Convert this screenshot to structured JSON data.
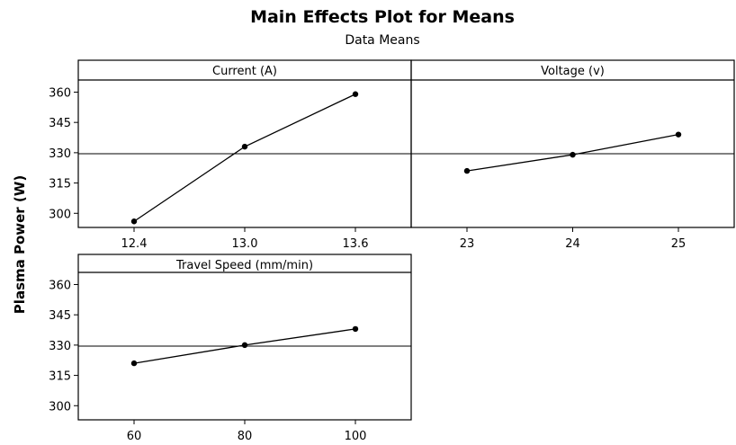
{
  "chart_data": {
    "type": "line",
    "title": "Main Effects Plot for Means",
    "subtitle": "Data Means",
    "ylabel": "Plasma Power (W)",
    "ylim": [
      293,
      366
    ],
    "yticks": [
      300,
      315,
      330,
      345,
      360
    ],
    "reference_mean": 329.5,
    "panels": [
      {
        "name": "Current (A)",
        "x": [
          "12.4",
          "13.0",
          "13.6"
        ],
        "values": [
          296,
          333,
          359
        ]
      },
      {
        "name": "Voltage (v)",
        "x": [
          "23",
          "24",
          "25"
        ],
        "values": [
          321,
          329,
          339
        ]
      },
      {
        "name": "Travel Speed (mm/min)",
        "x": [
          "60",
          "80",
          "100"
        ],
        "values": [
          321,
          330,
          338
        ]
      }
    ]
  }
}
